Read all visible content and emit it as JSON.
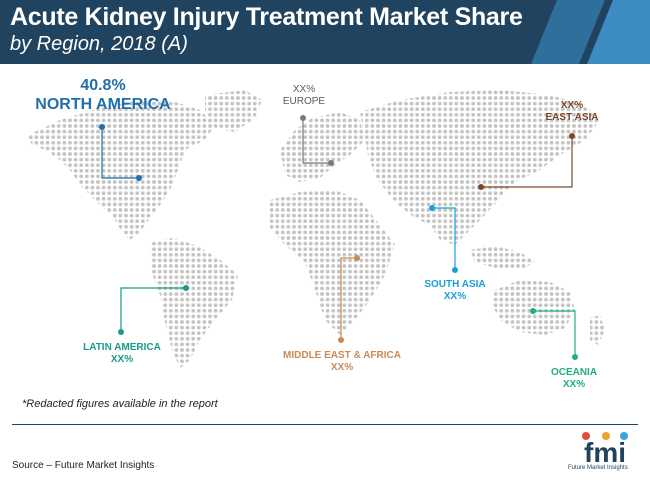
{
  "header": {
    "title": "Acute Kidney Injury Treatment Market Share",
    "subtitle": "by Region, 2018 (A)"
  },
  "regions": [
    {
      "id": "north_america",
      "value": "40.8%",
      "name": "NORTH AMERICA",
      "color": "#1f6fa8"
    },
    {
      "id": "europe",
      "value": "XX%",
      "name": "EUROPE",
      "color": "#7a7a7a"
    },
    {
      "id": "east_asia",
      "value": "XX%",
      "name": "EAST ASIA",
      "color": "#7b4a2a"
    },
    {
      "id": "south_asia",
      "value": "XX%",
      "name": "SOUTH ASIA",
      "color": "#1aa0d8"
    },
    {
      "id": "latin_america",
      "value": "XX%",
      "name": "LATIN AMERICA",
      "color": "#1a9a8a"
    },
    {
      "id": "middle_east_africa",
      "value": "XX%",
      "name": "MIDDLE EAST & AFRICA",
      "color": "#c98a55"
    },
    {
      "id": "oceania",
      "value": "XX%",
      "name": "OCEANIA",
      "color": "#1fb07a"
    }
  ],
  "footer": {
    "note": "*Redacted figures available in the report",
    "source": "Source – Future Market Insights",
    "logo_text": "fmi",
    "logo_tagline": "Future Market Insights"
  },
  "colors": {
    "header_bg": "#20435f",
    "dots": "#c4c4c4"
  }
}
